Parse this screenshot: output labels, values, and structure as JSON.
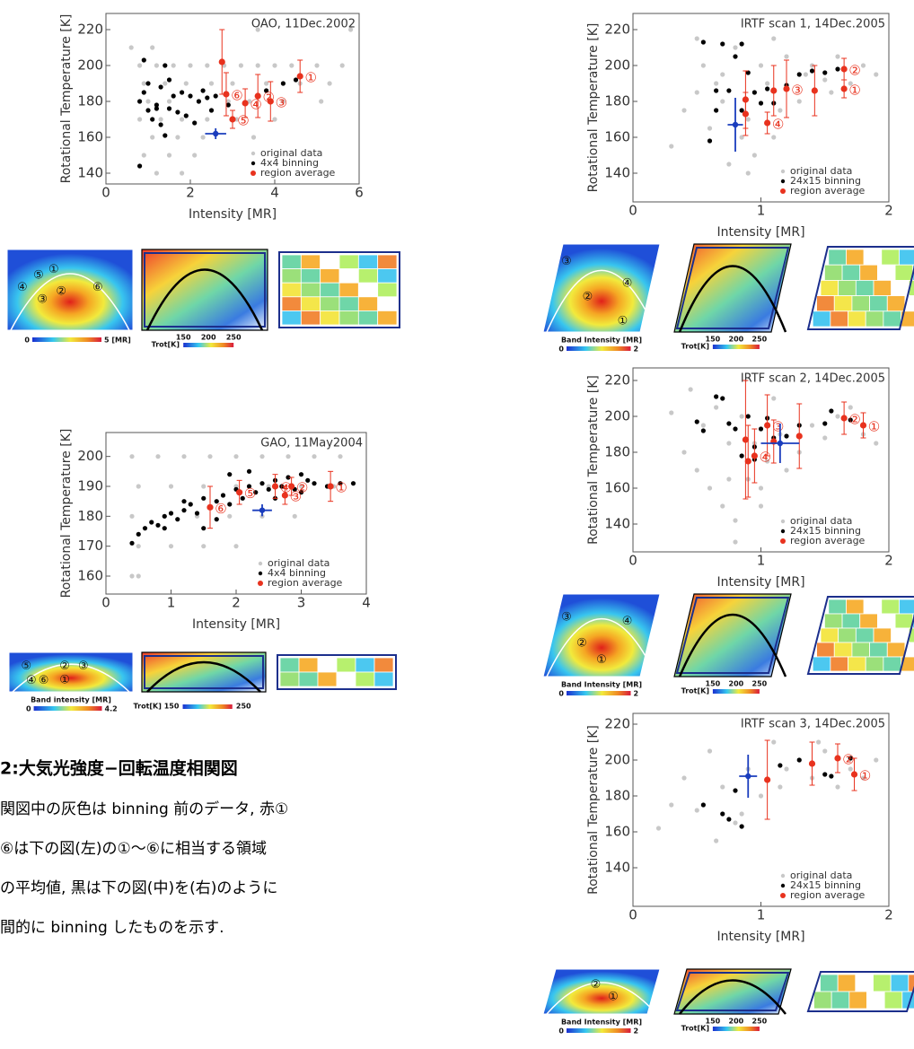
{
  "chart_data": [
    {
      "type": "scatter",
      "title": "OAO, 11Dec.2002",
      "x_label": "Intensity [MR]",
      "y_label": "Rotational Temperature [K]",
      "xlim": [
        0,
        6
      ],
      "ylim": [
        134,
        229
      ],
      "xticks": [
        0,
        2,
        4,
        6
      ],
      "yticks": [
        140,
        160,
        180,
        200,
        220
      ],
      "legend_position": "lower right",
      "series": [
        {
          "name": "original data",
          "color": "#c8c8c8",
          "x": [
            0.8,
            1.2,
            1.6,
            2.0,
            2.4,
            2.8,
            3.2,
            3.6,
            4.0,
            4.4,
            5.0,
            5.6,
            0.9,
            1.4,
            1.9,
            2.5,
            3.0,
            3.8,
            4.6,
            5.3,
            1.0,
            1.5,
            2.2,
            2.9,
            3.4,
            4.2,
            5.1,
            0.8,
            1.3,
            1.8,
            2.4,
            3.1,
            4.0,
            1.1,
            1.7,
            2.3,
            3.5,
            0.9,
            1.5,
            2.1,
            1.2,
            1.8,
            0.6,
            1.1,
            3.6,
            5.8
          ],
          "values": [
            200,
            200,
            200,
            200,
            200,
            200,
            200,
            200,
            200,
            200,
            200,
            200,
            190,
            190,
            190,
            190,
            190,
            190,
            190,
            190,
            180,
            180,
            180,
            180,
            180,
            180,
            180,
            170,
            170,
            170,
            170,
            170,
            170,
            160,
            160,
            160,
            160,
            150,
            150,
            150,
            140,
            140,
            210,
            210,
            220,
            220
          ]
        },
        {
          "name": "4x4 binning",
          "color": "#000000",
          "x": [
            0.9,
            1.0,
            1.4,
            1.5,
            0.8,
            1.0,
            1.2,
            1.1,
            1.3,
            1.4,
            1.6,
            1.8,
            2.0,
            2.2,
            1.9,
            2.3,
            2.5,
            2.1,
            1.5,
            1.7,
            0.9,
            0.8,
            1.2,
            2.4,
            4.2,
            4.5,
            3.8,
            2.9,
            1.3,
            2.6
          ],
          "values": [
            203,
            190,
            200,
            192,
            180,
            175,
            178,
            170,
            167,
            161,
            183,
            185,
            183,
            180,
            172,
            186,
            175,
            168,
            176,
            174,
            185,
            144,
            176,
            182,
            190,
            192,
            186,
            178,
            188,
            183
          ]
        },
        {
          "name": "region average",
          "color": "#e8321e",
          "x": [
            2.75,
            2.85,
            3.0,
            3.3,
            3.6,
            3.9,
            4.6
          ],
          "values": [
            202,
            184,
            170,
            179,
            183,
            180,
            194
          ],
          "errors": [
            18,
            12,
            5,
            8,
            12,
            11,
            9
          ],
          "labels": [
            null,
            "⑥",
            "⑤",
            "④",
            "②",
            "③",
            "①"
          ]
        }
      ],
      "highlight": {
        "color": "#1a3dbd",
        "x": 2.6,
        "value": 162,
        "x_error": 0.25,
        "error": 3
      }
    },
    {
      "type": "scatter",
      "title": "GAO, 11May2004",
      "x_label": "Intensity [MR]",
      "y_label": "Rotational Temperature [K]",
      "xlim": [
        0,
        4
      ],
      "ylim": [
        154,
        208
      ],
      "xticks": [
        0,
        1,
        2,
        3,
        4
      ],
      "yticks": [
        160,
        170,
        180,
        190,
        200
      ],
      "legend_position": "lower right",
      "series": [
        {
          "name": "original data",
          "color": "#c8c8c8",
          "x": [
            0.4,
            0.8,
            1.2,
            1.6,
            2.0,
            2.4,
            2.8,
            3.2,
            3.6,
            0.5,
            1.0,
            1.5,
            2.0,
            2.5,
            3.0,
            3.5,
            0.4,
            0.9,
            1.4,
            1.9,
            2.4,
            2.9,
            0.5,
            1.0,
            1.5,
            2.0,
            0.4,
            0.5
          ],
          "values": [
            200,
            200,
            200,
            200,
            200,
            200,
            200,
            200,
            200,
            190,
            190,
            190,
            190,
            190,
            190,
            190,
            180,
            180,
            180,
            180,
            180,
            180,
            170,
            170,
            170,
            170,
            160,
            160
          ]
        },
        {
          "name": "4x4 binning",
          "color": "#000000",
          "x": [
            0.4,
            0.5,
            0.6,
            0.7,
            0.8,
            0.9,
            1.0,
            1.1,
            1.2,
            1.3,
            1.4,
            1.5,
            1.6,
            1.7,
            1.8,
            1.9,
            2.0,
            2.1,
            2.2,
            2.3,
            2.4,
            2.5,
            2.6,
            2.7,
            2.8,
            2.9,
            3.0,
            3.1,
            3.2,
            3.4,
            3.6,
            3.8,
            1.5,
            1.9,
            2.2,
            1.2,
            0.9,
            2.6,
            3.0,
            1.7
          ],
          "values": [
            171,
            174,
            176,
            178,
            177,
            180,
            181,
            179,
            182,
            184,
            181,
            186,
            183,
            185,
            187,
            184,
            189,
            186,
            190,
            188,
            191,
            189,
            192,
            190,
            193,
            189,
            194,
            192,
            191,
            190,
            191,
            191,
            176,
            194,
            195,
            185,
            176,
            186,
            188,
            179
          ]
        },
        {
          "name": "region average",
          "color": "#e8321e",
          "x": [
            1.6,
            2.05,
            2.6,
            2.75,
            2.85,
            3.45
          ],
          "values": [
            183,
            188,
            190,
            187,
            190,
            190
          ],
          "errors": [
            7,
            4,
            4,
            3,
            3,
            5
          ],
          "labels": [
            "⑥",
            "⑤",
            "④",
            "③",
            "②",
            "①"
          ]
        }
      ],
      "highlight": {
        "color": "#1a3dbd",
        "x": 2.4,
        "value": 182,
        "x_error": 0.15,
        "error": 2
      }
    },
    {
      "type": "scatter",
      "title": "IRTF scan 1, 14Dec.2005",
      "x_label": "Intensity [MR]",
      "y_label": "Rotational Temperature [K]",
      "xlim": [
        0,
        2
      ],
      "ylim": [
        124,
        229
      ],
      "xticks": [
        0,
        1,
        2
      ],
      "yticks": [
        140,
        160,
        180,
        200,
        220
      ],
      "legend_position": "lower right",
      "series": [
        {
          "name": "original data",
          "color": "#c8c8c8",
          "x": [
            0.3,
            0.4,
            0.5,
            0.55,
            0.6,
            0.65,
            0.7,
            0.75,
            0.8,
            0.85,
            0.9,
            0.95,
            1.0,
            1.05,
            1.1,
            1.15,
            1.2,
            1.3,
            1.35,
            1.4,
            1.5,
            1.55,
            1.6,
            1.7,
            1.8,
            1.9,
            0.5,
            0.9,
            1.1,
            0.7
          ],
          "values": [
            155,
            175,
            185,
            200,
            165,
            190,
            195,
            145,
            210,
            160,
            170,
            150,
            200,
            190,
            215,
            175,
            205,
            180,
            195,
            200,
            192,
            185,
            205,
            190,
            200,
            195,
            215,
            140,
            160,
            180
          ]
        },
        {
          "name": "24x15 binning",
          "color": "#000000",
          "x": [
            0.55,
            0.6,
            0.65,
            0.7,
            0.75,
            0.8,
            0.85,
            0.9,
            0.95,
            1.0,
            1.05,
            1.1,
            1.2,
            1.3,
            1.4,
            1.5,
            1.6,
            0.65,
            0.85
          ],
          "values": [
            213,
            158,
            186,
            212,
            186,
            205,
            212,
            196,
            185,
            179,
            187,
            179,
            189,
            195,
            197,
            196,
            198,
            175,
            175
          ]
        },
        {
          "name": "region average",
          "color": "#e8321e",
          "x": [
            0.88,
            0.88,
            1.05,
            1.1,
            1.2,
            1.42,
            1.65,
            1.65
          ],
          "values": [
            181,
            173,
            168,
            186,
            187,
            186,
            198,
            187
          ],
          "errors": [
            16,
            12,
            6,
            14,
            16,
            14,
            6,
            5
          ],
          "labels": [
            null,
            null,
            "④",
            null,
            "③",
            null,
            "②",
            "①"
          ]
        }
      ],
      "highlight": {
        "color": "#1a3dbd",
        "x": 0.8,
        "value": 167,
        "x_error": 0.06,
        "error": 15
      }
    },
    {
      "type": "scatter",
      "title": "IRTF scan 2, 14Dec.2005",
      "x_label": "Intensity [MR]",
      "y_label": "Rotational Temperature [K]",
      "xlim": [
        0,
        2
      ],
      "ylim": [
        124.5,
        227
      ],
      "xticks": [
        0,
        1,
        2
      ],
      "yticks": [
        140,
        160,
        180,
        200,
        220
      ],
      "legend_position": "lower right",
      "series": [
        {
          "name": "original data",
          "color": "#c8c8c8",
          "x": [
            0.3,
            0.4,
            0.5,
            0.55,
            0.6,
            0.65,
            0.7,
            0.75,
            0.8,
            0.85,
            0.9,
            0.95,
            1.0,
            1.05,
            1.1,
            1.15,
            1.2,
            1.3,
            1.4,
            1.5,
            1.6,
            1.7,
            1.8,
            1.9,
            0.45,
            0.8,
            1.0,
            0.75
          ],
          "values": [
            202,
            180,
            170,
            195,
            160,
            205,
            150,
            185,
            142,
            200,
            165,
            185,
            160,
            175,
            210,
            190,
            170,
            180,
            195,
            188,
            200,
            205,
            190,
            185,
            215,
            130,
            150,
            165
          ]
        },
        {
          "name": "24x15 binning",
          "color": "#000000",
          "x": [
            0.5,
            0.55,
            0.65,
            0.7,
            0.75,
            0.8,
            0.9,
            0.95,
            1.0,
            1.05,
            1.1,
            1.2,
            1.3,
            1.5,
            1.55,
            1.7,
            0.85,
            0.95
          ],
          "values": [
            197,
            192,
            211,
            210,
            196,
            193,
            200,
            183,
            193,
            199,
            188,
            189,
            195,
            196,
            203,
            198,
            178,
            176
          ]
        },
        {
          "name": "region average",
          "color": "#e8321e",
          "x": [
            0.88,
            0.9,
            0.95,
            1.05,
            1.1,
            1.3,
            1.65,
            1.8
          ],
          "values": [
            187,
            175,
            178,
            195,
            186,
            189,
            199,
            195
          ],
          "errors": [
            33,
            20,
            15,
            17,
            12,
            18,
            9,
            7
          ],
          "labels": [
            null,
            null,
            "④",
            "③",
            null,
            null,
            "②",
            "①"
          ]
        }
      ],
      "highlight": {
        "color": "#1a3dbd",
        "x": 1.15,
        "value": 185,
        "x_error": 0.15,
        "error": 11
      }
    },
    {
      "type": "scatter",
      "title": "IRTF scan 3, 14Dec.2005",
      "x_label": "Intensity [MR]",
      "y_label": "Rotational Temperature [K]",
      "xlim": [
        0,
        2
      ],
      "ylim": [
        118.5,
        226
      ],
      "xticks": [
        0,
        1,
        2
      ],
      "yticks": [
        140,
        160,
        180,
        200,
        220
      ],
      "legend_position": "lower right",
      "series": [
        {
          "name": "original data",
          "color": "#c8c8c8",
          "x": [
            0.2,
            0.3,
            0.4,
            0.5,
            0.6,
            0.7,
            0.8,
            0.9,
            1.0,
            1.1,
            1.2,
            1.3,
            1.4,
            1.5,
            1.6,
            1.7,
            1.8,
            1.9,
            0.65,
            0.85,
            1.15,
            1.45
          ],
          "values": [
            162,
            175,
            190,
            172,
            205,
            185,
            165,
            195,
            180,
            210,
            195,
            200,
            190,
            205,
            185,
            195,
            190,
            200,
            155,
            170,
            185,
            210
          ]
        },
        {
          "name": "24x15 binning",
          "color": "#000000",
          "x": [
            0.55,
            0.7,
            0.75,
            0.8,
            0.85,
            1.15,
            1.3,
            1.5,
            1.55,
            1.7
          ],
          "values": [
            175,
            170,
            167,
            183,
            163,
            197,
            200,
            192,
            191,
            201
          ]
        },
        {
          "name": "region average",
          "color": "#e8321e",
          "x": [
            1.05,
            1.4,
            1.6,
            1.73
          ],
          "values": [
            189,
            198,
            201,
            192
          ],
          "errors": [
            22,
            12,
            8,
            9
          ],
          "labels": [
            null,
            null,
            "②",
            "①"
          ]
        }
      ],
      "highlight": {
        "color": "#1a3dbd",
        "x": 0.9,
        "value": 191,
        "x_error": 0.07,
        "error": 12
      }
    }
  ],
  "maps": [
    {
      "labels": [
        "①",
        "②",
        "③",
        "④",
        "⑤",
        "⑥"
      ],
      "bar_min": "0",
      "bar_max": "5 [MR]",
      "trot_title": "Trot[K]",
      "trot_ticks": [
        "150",
        "200",
        "250"
      ]
    },
    {
      "labels": [
        "①",
        "②",
        "③",
        "④",
        "⑤",
        "⑥"
      ],
      "bar_min": "0",
      "bar_max": "4.2",
      "bar_title": "Band intensity [MR]",
      "trot_title": "Trot[K] 150",
      "trot_ticks": [
        "250"
      ]
    },
    {
      "labels": [
        "③",
        "②",
        "④",
        "①"
      ],
      "bar_min": "0",
      "bar_max": "2",
      "bar_title": "Band Intensity [MR]",
      "trot_title": "Trot[K]",
      "trot_ticks": [
        "150",
        "200",
        "250"
      ]
    },
    {
      "labels": [
        "③",
        "④",
        "②",
        "①"
      ],
      "bar_min": "0",
      "bar_max": "2",
      "bar_title": "Band Intensity [MR]",
      "trot_title": "Trot[K]",
      "trot_ticks": [
        "150",
        "200",
        "250"
      ]
    },
    {
      "labels": [
        "②",
        "①"
      ],
      "bar_min": "0",
      "bar_max": "2",
      "bar_title": "Band Intensity [MR]",
      "trot_title": "Trot[K]",
      "trot_ticks": [
        "150",
        "200",
        "250"
      ]
    }
  ],
  "caption": {
    "heading": "2:大気光強度−回転温度相関図",
    "lines": [
      "関図中の灰色は binning 前のデータ, 赤①",
      "⑥は下の図(左)の①〜⑥に相当する領域",
      "の平均値, 黒は下の図(中)を(右)のように",
      "間的に binning したものを示す."
    ]
  }
}
